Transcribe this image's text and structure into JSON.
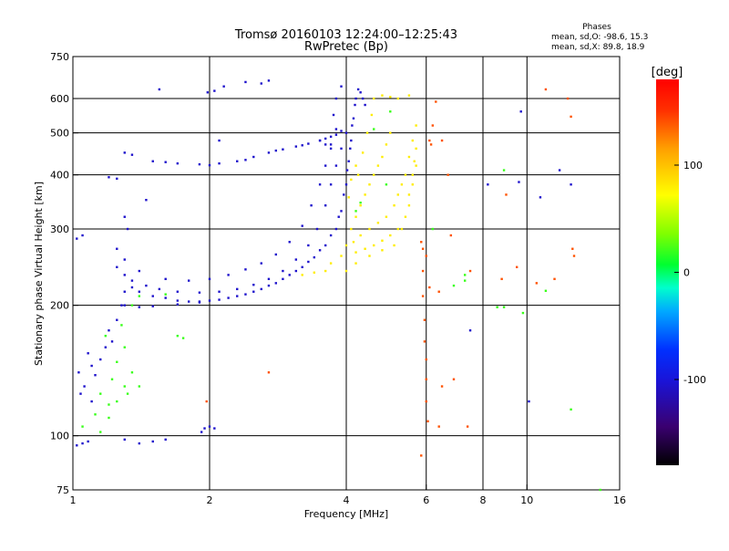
{
  "chart_data": {
    "type": "scatter",
    "title": "Tromsø 20160103 12:24:00–12:25:43",
    "subtitle": "RwPretec (Bp)",
    "phase_header": "Phases",
    "phase_stats": [
      "mean, sd,O: -98.6, 15.3",
      "mean, sd,X:  89.8, 18.9"
    ],
    "xlabel": "Frequency [MHz]",
    "ylabel": "Stationary phase Virtual Height [km]",
    "x_scale": "log",
    "y_scale": "log",
    "xlim": [
      1,
      16
    ],
    "ylim": [
      75,
      750
    ],
    "x_ticks": [
      1,
      2,
      4,
      6,
      8,
      10,
      16
    ],
    "y_ticks": [
      75,
      100,
      200,
      300,
      400,
      500,
      600,
      750
    ],
    "x_gridlines": [
      2,
      4,
      6,
      8,
      10
    ],
    "y_gridlines": [
      100,
      200,
      300,
      400,
      500,
      600
    ],
    "grid": true,
    "colorbar": {
      "label": "[deg]",
      "range": [
        -180,
        180
      ],
      "ticks": [
        100,
        0,
        -100
      ]
    },
    "series": [
      {
        "phase": -105,
        "points": [
          [
            1.02,
            95
          ],
          [
            1.05,
            96
          ],
          [
            1.08,
            97
          ],
          [
            1.3,
            98
          ],
          [
            1.4,
            96
          ],
          [
            1.5,
            97
          ],
          [
            1.6,
            98
          ],
          [
            1.95,
            104
          ],
          [
            2.0,
            105
          ],
          [
            2.05,
            104
          ],
          [
            1.92,
            102
          ],
          [
            1.03,
            140
          ],
          [
            1.06,
            130
          ],
          [
            1.1,
            145
          ],
          [
            1.15,
            150
          ],
          [
            1.18,
            160
          ],
          [
            1.22,
            165
          ],
          [
            1.08,
            155
          ],
          [
            1.12,
            138
          ],
          [
            1.2,
            175
          ],
          [
            1.25,
            185
          ],
          [
            1.28,
            200
          ],
          [
            1.3,
            215
          ],
          [
            1.04,
            125
          ],
          [
            1.1,
            120
          ],
          [
            1.35,
            220
          ],
          [
            1.4,
            215
          ],
          [
            1.5,
            210
          ],
          [
            1.6,
            208
          ],
          [
            1.7,
            205
          ],
          [
            1.8,
            204
          ],
          [
            1.9,
            204
          ],
          [
            2.0,
            205
          ],
          [
            2.2,
            208
          ],
          [
            2.4,
            212
          ],
          [
            2.6,
            218
          ],
          [
            2.8,
            225
          ],
          [
            3.0,
            235
          ],
          [
            3.2,
            245
          ],
          [
            3.4,
            258
          ],
          [
            3.6,
            275
          ],
          [
            3.8,
            300
          ],
          [
            3.9,
            330
          ],
          [
            4.0,
            380
          ],
          [
            4.05,
            430
          ],
          [
            4.1,
            480
          ],
          [
            4.15,
            540
          ],
          [
            4.2,
            600
          ],
          [
            4.25,
            630
          ],
          [
            1.3,
            200
          ],
          [
            1.4,
            198
          ],
          [
            1.5,
            199
          ],
          [
            1.7,
            201
          ],
          [
            1.9,
            203
          ],
          [
            2.1,
            206
          ],
          [
            2.3,
            210
          ],
          [
            2.5,
            215
          ],
          [
            2.7,
            222
          ],
          [
            2.9,
            230
          ],
          [
            3.1,
            240
          ],
          [
            3.3,
            252
          ],
          [
            3.5,
            268
          ],
          [
            3.7,
            290
          ],
          [
            3.85,
            320
          ],
          [
            3.95,
            360
          ],
          [
            4.02,
            410
          ],
          [
            4.08,
            460
          ],
          [
            4.12,
            520
          ],
          [
            4.18,
            580
          ],
          [
            1.25,
            245
          ],
          [
            1.3,
            235
          ],
          [
            1.35,
            228
          ],
          [
            1.45,
            222
          ],
          [
            1.55,
            218
          ],
          [
            1.7,
            215
          ],
          [
            1.9,
            214
          ],
          [
            2.1,
            215
          ],
          [
            2.3,
            218
          ],
          [
            2.5,
            223
          ],
          [
            2.7,
            230
          ],
          [
            2.9,
            240
          ],
          [
            3.1,
            255
          ],
          [
            3.3,
            275
          ],
          [
            3.45,
            300
          ],
          [
            3.6,
            340
          ],
          [
            3.7,
            380
          ],
          [
            3.8,
            420
          ],
          [
            3.9,
            460
          ],
          [
            4.0,
            500
          ],
          [
            3.5,
            480
          ],
          [
            3.6,
            470
          ],
          [
            3.7,
            490
          ],
          [
            3.8,
            510
          ],
          [
            1.25,
            270
          ],
          [
            1.3,
            255
          ],
          [
            1.4,
            240
          ],
          [
            1.6,
            230
          ],
          [
            1.8,
            228
          ],
          [
            2.0,
            230
          ],
          [
            2.2,
            235
          ],
          [
            2.4,
            242
          ],
          [
            2.6,
            250
          ],
          [
            2.8,
            262
          ],
          [
            3.0,
            280
          ],
          [
            3.2,
            305
          ],
          [
            3.35,
            340
          ],
          [
            3.5,
            380
          ],
          [
            3.6,
            420
          ],
          [
            3.7,
            460
          ],
          [
            3.8,
            495
          ],
          [
            1.35,
            445
          ],
          [
            1.5,
            430
          ],
          [
            1.7,
            425
          ],
          [
            1.9,
            423
          ],
          [
            2.1,
            425
          ],
          [
            2.3,
            430
          ],
          [
            2.5,
            440
          ],
          [
            2.7,
            450
          ],
          [
            2.9,
            458
          ],
          [
            3.1,
            465
          ],
          [
            3.3,
            472
          ],
          [
            3.5,
            480
          ],
          [
            1.3,
            450
          ],
          [
            1.6,
            428
          ],
          [
            2.0,
            421
          ],
          [
            2.4,
            433
          ],
          [
            2.8,
            455
          ],
          [
            3.2,
            468
          ],
          [
            3.6,
            485
          ],
          [
            3.9,
            505
          ],
          [
            1.55,
            630
          ],
          [
            1.98,
            620
          ],
          [
            2.05,
            625
          ],
          [
            2.15,
            640
          ],
          [
            2.4,
            655
          ],
          [
            2.6,
            650
          ],
          [
            2.7,
            660
          ],
          [
            1.02,
            285
          ],
          [
            1.05,
            290
          ],
          [
            1.2,
            395
          ],
          [
            1.25,
            392
          ],
          [
            1.3,
            320
          ],
          [
            1.32,
            300
          ],
          [
            1.45,
            350
          ],
          [
            3.7,
            470
          ],
          [
            3.75,
            550
          ],
          [
            3.8,
            600
          ],
          [
            3.9,
            640
          ],
          [
            4.3,
            620
          ],
          [
            4.35,
            600
          ],
          [
            4.4,
            580
          ],
          [
            2.1,
            480
          ],
          [
            7.5,
            175
          ],
          [
            10.1,
            120
          ],
          [
            11.8,
            410
          ],
          [
            10.7,
            355
          ],
          [
            12.5,
            380
          ],
          [
            9.6,
            385
          ],
          [
            8.2,
            380
          ],
          [
            9.7,
            560
          ]
        ]
      },
      {
        "phase": 80,
        "points": [
          [
            4.1,
            300
          ],
          [
            4.2,
            320
          ],
          [
            4.3,
            340
          ],
          [
            4.4,
            360
          ],
          [
            4.5,
            380
          ],
          [
            4.6,
            400
          ],
          [
            4.7,
            420
          ],
          [
            4.8,
            440
          ],
          [
            4.9,
            470
          ],
          [
            5.0,
            500
          ],
          [
            4.15,
            280
          ],
          [
            4.3,
            290
          ],
          [
            4.5,
            300
          ],
          [
            4.7,
            310
          ],
          [
            4.9,
            320
          ],
          [
            5.1,
            340
          ],
          [
            5.2,
            360
          ],
          [
            5.3,
            380
          ],
          [
            5.4,
            400
          ],
          [
            5.5,
            440
          ],
          [
            5.6,
            480
          ],
          [
            5.7,
            520
          ],
          [
            3.7,
            250
          ],
          [
            3.9,
            260
          ],
          [
            4.0,
            275
          ],
          [
            4.2,
            265
          ],
          [
            4.4,
            270
          ],
          [
            4.6,
            275
          ],
          [
            4.8,
            282
          ],
          [
            5.0,
            290
          ],
          [
            5.2,
            300
          ],
          [
            5.4,
            320
          ],
          [
            5.5,
            360
          ],
          [
            5.6,
            400
          ],
          [
            5.65,
            430
          ],
          [
            4.0,
            240
          ],
          [
            4.2,
            250
          ],
          [
            4.5,
            260
          ],
          [
            4.8,
            268
          ],
          [
            5.1,
            275
          ],
          [
            5.3,
            300
          ],
          [
            5.5,
            340
          ],
          [
            5.6,
            380
          ],
          [
            5.7,
            420
          ],
          [
            5.7,
            460
          ],
          [
            4.6,
            600
          ],
          [
            4.8,
            610
          ],
          [
            5.0,
            605
          ],
          [
            5.2,
            600
          ],
          [
            5.5,
            610
          ],
          [
            4.25,
            400
          ],
          [
            4.35,
            450
          ],
          [
            4.45,
            500
          ],
          [
            4.55,
            550
          ],
          [
            3.6,
            240
          ],
          [
            3.4,
            238
          ],
          [
            3.2,
            235
          ],
          [
            4.05,
            355
          ],
          [
            4.1,
            390
          ],
          [
            4.2,
            420
          ]
        ]
      },
      {
        "phase": 20,
        "points": [
          [
            1.05,
            105
          ],
          [
            1.15,
            102
          ],
          [
            1.2,
            110
          ],
          [
            1.25,
            120
          ],
          [
            1.3,
            130
          ],
          [
            1.35,
            140
          ],
          [
            1.15,
            125
          ],
          [
            1.2,
            118
          ],
          [
            1.25,
            148
          ],
          [
            1.3,
            160
          ],
          [
            1.18,
            170
          ],
          [
            1.28,
            180
          ],
          [
            1.22,
            135
          ],
          [
            1.32,
            125
          ],
          [
            1.4,
            130
          ],
          [
            1.12,
            112
          ],
          [
            1.35,
            200
          ],
          [
            1.4,
            210
          ],
          [
            1.6,
            212
          ],
          [
            1.7,
            170
          ],
          [
            1.75,
            168
          ],
          [
            4.2,
            330
          ],
          [
            4.3,
            345
          ],
          [
            4.6,
            510
          ],
          [
            5.0,
            560
          ],
          [
            4.9,
            380
          ],
          [
            6.2,
            300
          ],
          [
            7.3,
            235
          ],
          [
            8.9,
            410
          ],
          [
            12.5,
            115
          ],
          [
            11.0,
            216
          ],
          [
            9.8,
            192
          ],
          [
            6.9,
            222
          ],
          [
            7.3,
            228
          ],
          [
            8.6,
            198
          ],
          [
            8.9,
            198
          ],
          [
            14.5,
            75
          ]
        ]
      },
      {
        "phase": 140,
        "points": [
          [
            5.9,
            270
          ],
          [
            5.9,
            240
          ],
          [
            5.9,
            210
          ],
          [
            5.95,
            185
          ],
          [
            5.95,
            165
          ],
          [
            6.0,
            150
          ],
          [
            6.0,
            135
          ],
          [
            6.0,
            120
          ],
          [
            6.05,
            108
          ],
          [
            5.85,
            90
          ],
          [
            6.0,
            260
          ],
          [
            6.1,
            220
          ],
          [
            6.3,
            590
          ],
          [
            6.5,
            130
          ],
          [
            6.4,
            105
          ],
          [
            7.4,
            105
          ],
          [
            6.8,
            290
          ],
          [
            6.7,
            400
          ],
          [
            5.85,
            280
          ],
          [
            6.2,
            520
          ],
          [
            6.5,
            480
          ],
          [
            11.0,
            630
          ],
          [
            11.5,
            230
          ],
          [
            12.3,
            600
          ],
          [
            12.5,
            545
          ],
          [
            12.7,
            260
          ],
          [
            12.6,
            270
          ],
          [
            8.8,
            230
          ],
          [
            6.9,
            135
          ],
          [
            2.7,
            140
          ],
          [
            1.97,
            120
          ],
          [
            6.1,
            480
          ],
          [
            6.15,
            470
          ],
          [
            6.4,
            215
          ],
          [
            7.5,
            240
          ],
          [
            9.0,
            360
          ],
          [
            9.5,
            245
          ],
          [
            10.5,
            225
          ]
        ]
      }
    ]
  }
}
